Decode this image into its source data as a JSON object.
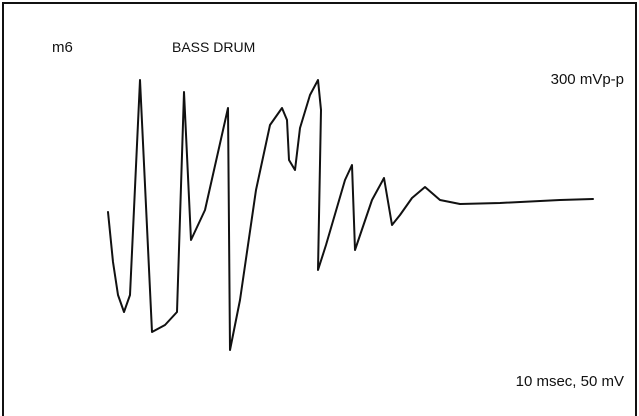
{
  "header": {
    "id": "m6",
    "title": "BASS DRUM"
  },
  "labels": {
    "amplitude": "300 mVp-p",
    "scale": "10 msec, 50 mV"
  }
}
